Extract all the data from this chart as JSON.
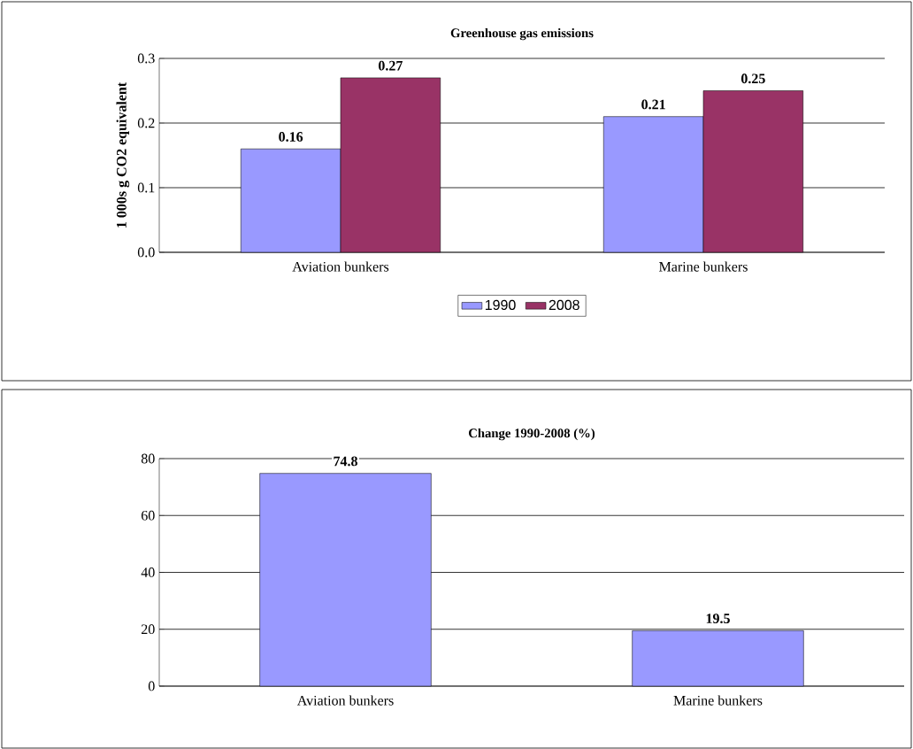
{
  "chart_data": [
    {
      "type": "bar",
      "title": "Greenhouse gas emissions",
      "ylabel": "1 000s g CO2 equivalent",
      "categories": [
        "Aviation bunkers",
        "Marine bunkers"
      ],
      "series": [
        {
          "name": "1990",
          "color": "#9999ff",
          "values": [
            0.16,
            0.21
          ]
        },
        {
          "name": "2008",
          "color": "#993366",
          "values": [
            0.27,
            0.25
          ]
        }
      ],
      "ylim": [
        0,
        0.3
      ],
      "yticks": [
        {
          "value": 0,
          "label": "0.0"
        },
        0.1,
        0.2,
        0.3
      ],
      "grid": "y",
      "legend": "bottom",
      "data_labels": true
    },
    {
      "type": "bar",
      "title": "Change 1990-2008 (%)",
      "categories": [
        "Aviation bunkers",
        "Marine bunkers"
      ],
      "values": [
        74.8,
        19.5
      ],
      "color": "#9999ff",
      "ylim": [
        0,
        80
      ],
      "yticks": [
        0,
        20,
        40,
        60,
        80
      ],
      "grid": "y",
      "data_labels": true
    }
  ]
}
